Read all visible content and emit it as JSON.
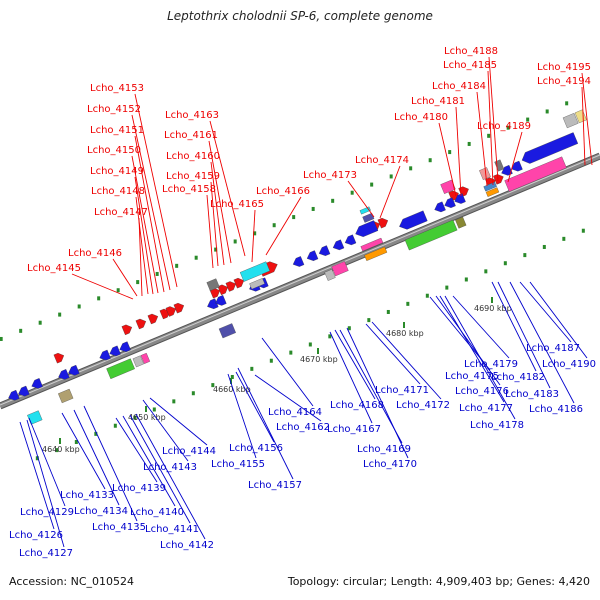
{
  "title": "Leptothrix cholodnii SP-6, complete genome",
  "footer": {
    "accession": "Accession: NC_010524",
    "summary": "Topology: circular; Length: 4,909,403 bp; Genes: 4,420"
  },
  "colors": {
    "plus_label": "#ee0000",
    "minus_label": "#0000cc",
    "backbone": "#888888"
  },
  "tick_labels": [
    "4640 kbp",
    "4650 kbp",
    "4660 kbp",
    "4670 kbp",
    "4680 kbp",
    "4690 kbp"
  ],
  "labels_plus_strand": [
    "Lcho_4145",
    "Lcho_4146",
    "Lcho_4147",
    "Lcho_4148",
    "Lcho_4149",
    "Lcho_4150",
    "Lcho_4151",
    "Lcho_4152",
    "Lcho_4153",
    "Lcho_4158",
    "Lcho_4159",
    "Lcho_4160",
    "Lcho_4161",
    "Lcho_4163",
    "Lcho_4165",
    "Lcho_4166",
    "Lcho_4173",
    "Lcho_4174",
    "Lcho_4180",
    "Lcho_4181",
    "Lcho_4184",
    "Lcho_4185",
    "Lcho_4188",
    "Lcho_4189",
    "Lcho_4194",
    "Lcho_4195"
  ],
  "labels_minus_strand": [
    "Lcho_4126",
    "Lcho_4127",
    "Lcho_4129",
    "Lcho_4133",
    "Lcho_4134",
    "Lcho_4135",
    "Lcho_4139",
    "Lcho_4140",
    "Lcho_4141",
    "Lcho_4142",
    "Lcho_4143",
    "Lcho_4144",
    "Lcho_4155",
    "Lcho_4156",
    "Lcho_4157",
    "Lcho_4162",
    "Lcho_4164",
    "Lcho_4167",
    "Lcho_4168",
    "Lcho_4169",
    "Lcho_4170",
    "Lcho_4171",
    "Lcho_4172",
    "Lcho_4175",
    "Lcho_4176",
    "Lcho_4177",
    "Lcho_4178",
    "Lcho_4179",
    "Lcho_4182",
    "Lcho_4183",
    "Lcho_4186",
    "Lcho_4187",
    "Lcho_4190"
  ]
}
